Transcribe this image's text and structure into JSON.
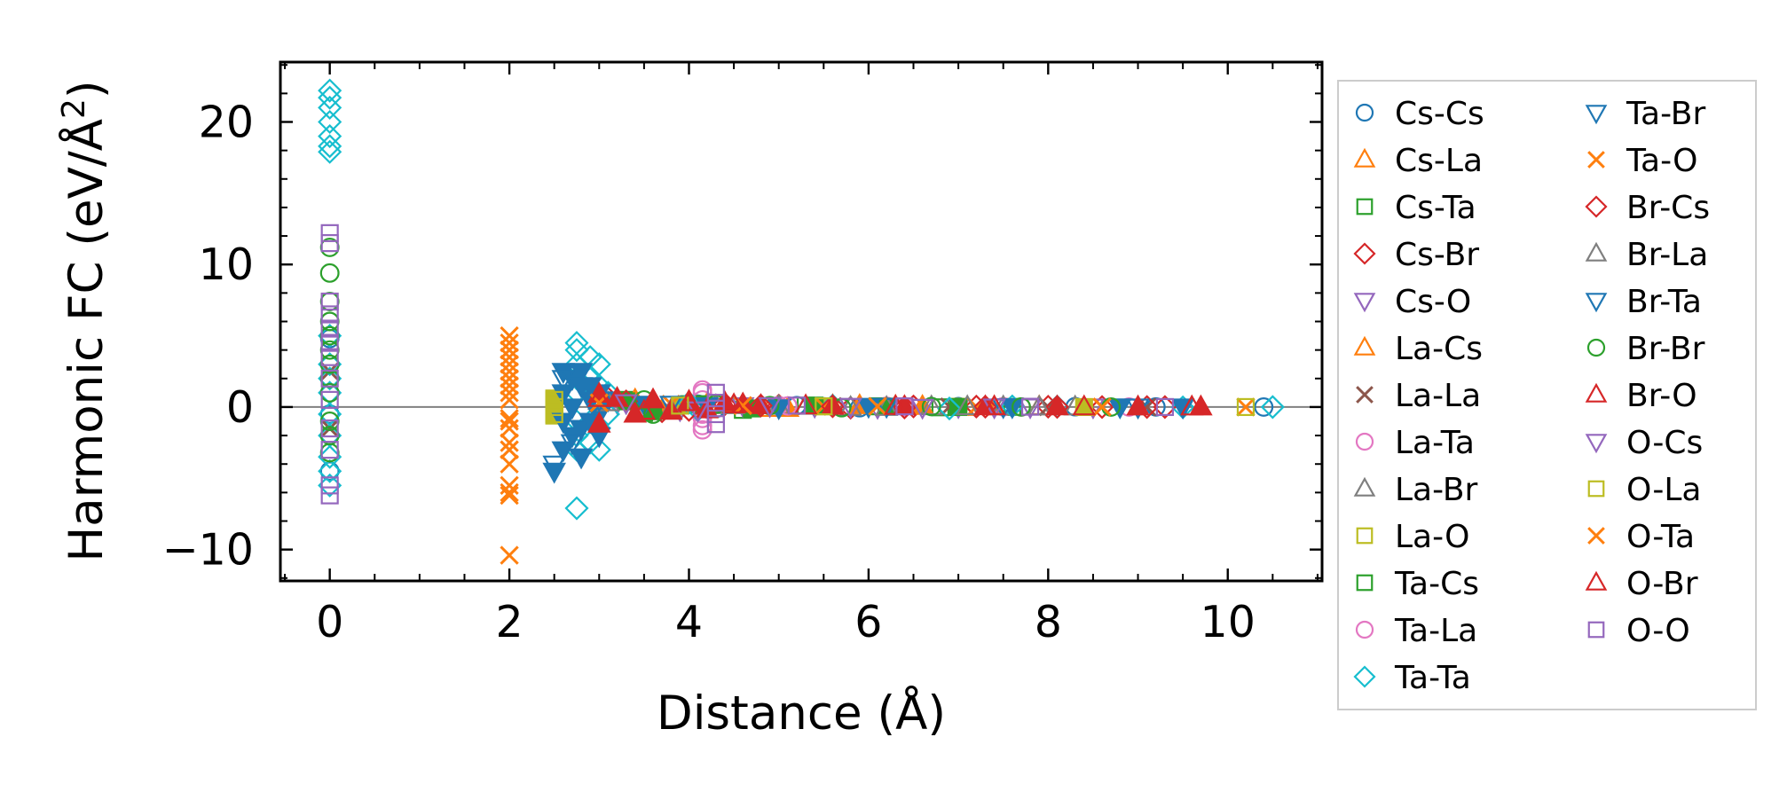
{
  "chart_data": {
    "type": "scatter",
    "title": "",
    "xlabel": "Distance (Å)",
    "ylabel": "Harmonic FC (eV/Å",
    "ylabel_sup": "2",
    "ylabel_tail": ")",
    "xlim": [
      -0.55,
      11.05
    ],
    "ylim": [
      -12.2,
      24.2
    ],
    "xticks": [
      0,
      2,
      4,
      6,
      8,
      10
    ],
    "xtick_labels": [
      "0",
      "2",
      "4",
      "6",
      "8",
      "10"
    ],
    "yticks": [
      -10,
      0,
      10,
      20
    ],
    "ytick_labels": [
      "−10",
      "0",
      "10",
      "20"
    ],
    "xminor": [
      -0.5,
      0.5,
      1,
      1.5,
      2.5,
      3,
      3.5,
      4.5,
      5,
      5.5,
      6.5,
      7,
      7.5,
      8.5,
      9,
      9.5,
      10.5,
      11
    ],
    "yminor": [
      -12,
      -8,
      -6,
      -4,
      -2,
      2,
      4,
      6,
      8,
      12,
      14,
      16,
      18,
      22,
      24
    ],
    "zero_line": 0,
    "legend_position": "outside-right",
    "colors": {
      "blue": "#1f77b4",
      "orange": "#ff7f0e",
      "green": "#2ca02c",
      "red": "#d62728",
      "purple": "#9467bd",
      "brown": "#8c564b",
      "pink": "#e377c2",
      "gray": "#7f7f7f",
      "olive": "#bcbd22",
      "cyan": "#17becf"
    },
    "series": [
      {
        "name": "Cs-Cs",
        "marker": "circle",
        "color": "#1f77b4",
        "filled": false,
        "x": [
          0,
          0,
          0,
          0,
          4.1,
          4.3,
          5.2,
          5.9,
          7.0,
          8.3,
          9.2,
          10.4
        ],
        "y": [
          4.8,
          2.0,
          -0.5,
          -4.5,
          0.2,
          -0.1,
          0.1,
          -0.05,
          0.03,
          0.02,
          0.01,
          0.0
        ]
      },
      {
        "name": "Cs-La",
        "marker": "triangle-up",
        "color": "#ff7f0e",
        "filled": false,
        "x": [
          3.4,
          3.6,
          4.2,
          4.9,
          5.6,
          6.3,
          7.1,
          7.9
        ],
        "y": [
          0.4,
          -0.3,
          0.2,
          -0.1,
          0.1,
          0.05,
          -0.03,
          0.02
        ]
      },
      {
        "name": "Cs-Ta",
        "marker": "square",
        "color": "#2ca02c",
        "filled": false,
        "x": [
          3.3,
          3.5,
          4.0,
          4.6,
          5.3,
          6.1,
          6.8,
          7.6
        ],
        "y": [
          0.5,
          -0.4,
          0.2,
          -0.2,
          0.1,
          0.05,
          -0.02,
          0.01
        ]
      },
      {
        "name": "Cs-Br",
        "marker": "diamond",
        "color": "#d62728",
        "filled": false,
        "x": [
          3.1,
          3.7,
          4.4,
          5.0,
          5.8,
          6.5,
          7.2,
          8.0,
          8.6,
          9.3
        ],
        "y": [
          0.6,
          -0.3,
          0.2,
          0.1,
          -0.05,
          0.04,
          0.03,
          0.02,
          0.0,
          0.0
        ]
      },
      {
        "name": "Cs-O",
        "marker": "triangle-down",
        "color": "#9467bd",
        "filled": false,
        "x": [
          3.2,
          3.9,
          4.6,
          5.4,
          6.1,
          7.0,
          7.8,
          8.5
        ],
        "y": [
          0.3,
          -0.2,
          0.1,
          0.05,
          -0.03,
          0.02,
          0.01,
          0.0
        ]
      },
      {
        "name": "La-Cs",
        "marker": "triangle-up",
        "color": "#ff7f0e",
        "filled": true,
        "x": [
          3.4,
          3.7,
          4.4,
          5.1,
          5.9,
          6.6,
          7.4
        ],
        "y": [
          0.5,
          -0.2,
          0.2,
          -0.1,
          0.1,
          0.04,
          0.0
        ]
      },
      {
        "name": "La-La",
        "marker": "x",
        "color": "#8c564b",
        "filled": false,
        "x": [
          0,
          0,
          4.0,
          5.6,
          6.9,
          8.0,
          9.1
        ],
        "y": [
          2.5,
          -1.5,
          0.1,
          0.05,
          0.02,
          0.01,
          0.0
        ]
      },
      {
        "name": "La-Ta",
        "marker": "circle",
        "color": "#e377c2",
        "filled": false,
        "x": [
          4.15,
          4.15,
          4.15,
          4.15,
          5.0,
          6.2,
          7.5,
          8.9
        ],
        "y": [
          1.2,
          0.5,
          -0.8,
          -1.6,
          0.1,
          0.05,
          0.02,
          0.0
        ]
      },
      {
        "name": "La-Br",
        "marker": "triangle-up",
        "color": "#7f7f7f",
        "filled": false,
        "x": [
          3.0,
          3.6,
          4.3,
          5.0,
          5.8,
          6.7,
          7.5,
          8.3
        ],
        "y": [
          0.4,
          -0.2,
          0.1,
          0.05,
          -0.03,
          0.02,
          0.01,
          0.0
        ]
      },
      {
        "name": "La-O",
        "marker": "square",
        "color": "#bcbd22",
        "filled": true,
        "x": [
          2.5,
          2.5,
          2.5,
          2.5,
          3.9,
          5.5,
          7.0,
          8.4
        ],
        "y": [
          0.6,
          0.2,
          -0.3,
          -0.6,
          0.1,
          0.05,
          0.02,
          0.0
        ]
      },
      {
        "name": "Ta-Cs",
        "marker": "square",
        "color": "#2ca02c",
        "filled": true,
        "x": [
          3.3,
          3.6,
          4.1,
          4.7,
          5.4,
          6.2,
          7.0
        ],
        "y": [
          0.4,
          -0.3,
          0.2,
          -0.1,
          0.1,
          0.03,
          0.0
        ]
      },
      {
        "name": "Ta-La",
        "marker": "circle",
        "color": "#e377c2",
        "filled": false,
        "x": [
          4.15,
          4.15,
          4.15,
          5.1,
          6.4,
          7.7
        ],
        "y": [
          1.0,
          -0.5,
          -1.3,
          0.08,
          0.03,
          0.0
        ]
      },
      {
        "name": "Ta-Ta",
        "marker": "diamond",
        "color": "#17becf",
        "filled": false,
        "x": [
          0,
          0,
          0,
          0,
          0,
          0,
          0,
          0,
          0,
          0,
          0,
          0,
          0,
          0,
          0,
          0,
          2.75,
          2.75,
          2.75,
          2.75,
          2.75,
          2.75,
          2.75,
          2.75,
          2.75,
          2.9,
          2.9,
          2.9,
          2.9,
          3.0,
          3.0,
          3.0,
          3.0,
          3.0,
          3.1,
          3.1,
          4.0,
          4.1,
          5.6,
          6.9,
          7.6,
          8.1,
          9.5,
          10.5
        ],
        "y": [
          22.2,
          21.7,
          21.0,
          20.0,
          19.0,
          18.3,
          17.9,
          5.0,
          3.0,
          1.0,
          -0.5,
          -2.0,
          -3.5,
          -4.5,
          -5.5,
          2.0,
          4.5,
          4.0,
          3.0,
          2.0,
          1.0,
          -1.0,
          -2.0,
          -3.0,
          -7.1,
          3.5,
          2.0,
          -1.0,
          -2.5,
          3.0,
          1.5,
          0.5,
          -1.5,
          -3.0,
          1.0,
          -0.5,
          0.3,
          -0.2,
          0.1,
          -0.1,
          0.05,
          0.03,
          -0.02,
          0.0
        ]
      },
      {
        "name": "Ta-Br",
        "marker": "triangle-down",
        "color": "#1f77b4",
        "filled": true,
        "x": [
          2.5,
          2.6,
          2.6,
          2.6,
          2.6,
          2.7,
          2.7,
          2.7,
          2.8,
          2.8,
          2.8,
          2.8,
          2.9,
          2.9,
          2.9,
          3.0,
          3.0,
          3.0,
          3.1,
          3.5,
          4.2,
          5.0,
          6.0,
          7.6,
          8.8,
          9.5
        ],
        "y": [
          -4.5,
          2.5,
          1.0,
          -1.0,
          -3.0,
          2.0,
          0.0,
          -2.0,
          2.5,
          1.5,
          -1.5,
          -3.5,
          1.5,
          0.5,
          -1.0,
          1.0,
          -0.5,
          -2.0,
          0.5,
          0.2,
          0.1,
          -0.05,
          0.05,
          0.02,
          0.01,
          0.0
        ]
      },
      {
        "name": "Ta-O",
        "marker": "x",
        "color": "#ff7f0e",
        "filled": false,
        "x": [
          2.0,
          2.0,
          2.0,
          2.0,
          2.0,
          2.0,
          2.0,
          2.0,
          2.0,
          2.0,
          2.0,
          2.0,
          2.0,
          2.0,
          2.0,
          2.0,
          2.0,
          2.0,
          3.0,
          3.8,
          4.6,
          5.5,
          7.2,
          8.6,
          10.2
        ],
        "y": [
          5.0,
          4.5,
          4.0,
          3.5,
          3.0,
          2.5,
          2.0,
          1.5,
          1.0,
          0.5,
          -0.8,
          -1.5,
          -2.5,
          -3.0,
          -4.0,
          -5.5,
          -6.2,
          -10.4,
          0.3,
          0.2,
          0.1,
          0.05,
          0.02,
          0.01,
          0.0
        ]
      },
      {
        "name": "Br-Cs",
        "marker": "diamond",
        "color": "#d62728",
        "filled": false,
        "x": [
          3.3,
          4.0,
          4.8,
          5.6,
          6.4,
          7.3,
          8.1,
          9.1
        ],
        "y": [
          0.4,
          -0.2,
          0.1,
          0.05,
          -0.03,
          0.02,
          0.01,
          0.0
        ]
      },
      {
        "name": "Br-La",
        "marker": "triangle-up",
        "color": "#7f7f7f",
        "filled": false,
        "x": [
          3.1,
          3.8,
          4.5,
          5.3,
          6.2,
          7.1,
          7.9
        ],
        "y": [
          0.3,
          -0.2,
          0.1,
          0.05,
          -0.03,
          0.02,
          0.0
        ]
      },
      {
        "name": "Br-Ta",
        "marker": "triangle-down",
        "color": "#1f77b4",
        "filled": false,
        "x": [
          2.5,
          2.6,
          2.7,
          2.8,
          2.9,
          3.0,
          3.8,
          4.9,
          6.2,
          7.5,
          9.0
        ],
        "y": [
          -4.0,
          2.0,
          -2.5,
          1.5,
          -1.0,
          0.5,
          0.2,
          0.1,
          0.05,
          0.02,
          0.0
        ]
      },
      {
        "name": "Br-Br",
        "marker": "circle",
        "color": "#2ca02c",
        "filled": false,
        "x": [
          0,
          0,
          0,
          0,
          0,
          0,
          0,
          0,
          0,
          0,
          0,
          0,
          3.5,
          3.6,
          4.3,
          4.9,
          5.7,
          6.7,
          7.7,
          8.7
        ],
        "y": [
          11.2,
          9.4,
          7.4,
          6.0,
          5.0,
          4.0,
          3.0,
          2.0,
          1.0,
          -1.0,
          -2.0,
          -3.2,
          0.5,
          -0.5,
          0.2,
          0.1,
          -0.05,
          0.03,
          0.01,
          0.0
        ]
      },
      {
        "name": "Br-O",
        "marker": "triangle-up",
        "color": "#d62728",
        "filled": true,
        "x": [
          3.0,
          3.0,
          3.2,
          3.4,
          3.6,
          3.8,
          4.0,
          4.2,
          4.4,
          4.6,
          4.8,
          5.6,
          6.4,
          7.3,
          8.1,
          9.0,
          9.7
        ],
        "y": [
          0.9,
          -1.2,
          0.6,
          -0.5,
          0.5,
          -0.3,
          0.4,
          -0.2,
          0.3,
          0.2,
          0.1,
          0.05,
          0.03,
          0.02,
          0.01,
          0.0,
          0.0
        ]
      },
      {
        "name": "O-Cs",
        "marker": "triangle-down",
        "color": "#9467bd",
        "filled": false,
        "x": [
          3.3,
          4.1,
          4.9,
          5.8,
          6.6,
          7.4
        ],
        "y": [
          0.3,
          -0.2,
          0.1,
          0.05,
          -0.02,
          0.0
        ]
      },
      {
        "name": "O-La",
        "marker": "square",
        "color": "#bcbd22",
        "filled": false,
        "x": [
          2.5,
          2.5,
          2.5,
          3.9,
          5.5,
          10.2
        ],
        "y": [
          0.5,
          0.0,
          -0.5,
          0.1,
          0.05,
          0.0
        ]
      },
      {
        "name": "O-Ta",
        "marker": "x",
        "color": "#ff7f0e",
        "filled": false,
        "x": [
          2.0,
          2.0,
          2.0,
          2.0,
          2.0,
          3.0,
          4.6,
          6.1,
          8.6
        ],
        "y": [
          4.0,
          2.0,
          -1.0,
          -3.0,
          -6.0,
          0.3,
          0.1,
          0.05,
          0.0
        ]
      },
      {
        "name": "O-Br",
        "marker": "triangle-up",
        "color": "#d62728",
        "filled": false,
        "x": [
          3.0,
          3.5,
          4.0,
          4.5,
          5.3,
          6.3,
          7.4,
          8.4,
          9.6
        ],
        "y": [
          0.6,
          -0.3,
          0.3,
          0.15,
          0.08,
          0.04,
          0.02,
          0.01,
          0.0
        ]
      },
      {
        "name": "O-O",
        "marker": "square",
        "color": "#9467bd",
        "filled": false,
        "x": [
          0,
          0,
          0,
          0,
          0,
          0,
          0,
          0,
          0,
          0,
          0,
          0,
          0,
          4.3,
          4.3,
          4.3,
          4.3,
          5.2,
          6.4,
          7.8,
          9.3
        ],
        "y": [
          12.2,
          11.5,
          7.4,
          6.5,
          5.5,
          4.5,
          3.5,
          2.0,
          0.5,
          -1.5,
          -3.0,
          -5.5,
          -6.2,
          1.0,
          0.3,
          -0.5,
          -1.2,
          0.1,
          0.05,
          0.02,
          0.0
        ]
      }
    ]
  }
}
